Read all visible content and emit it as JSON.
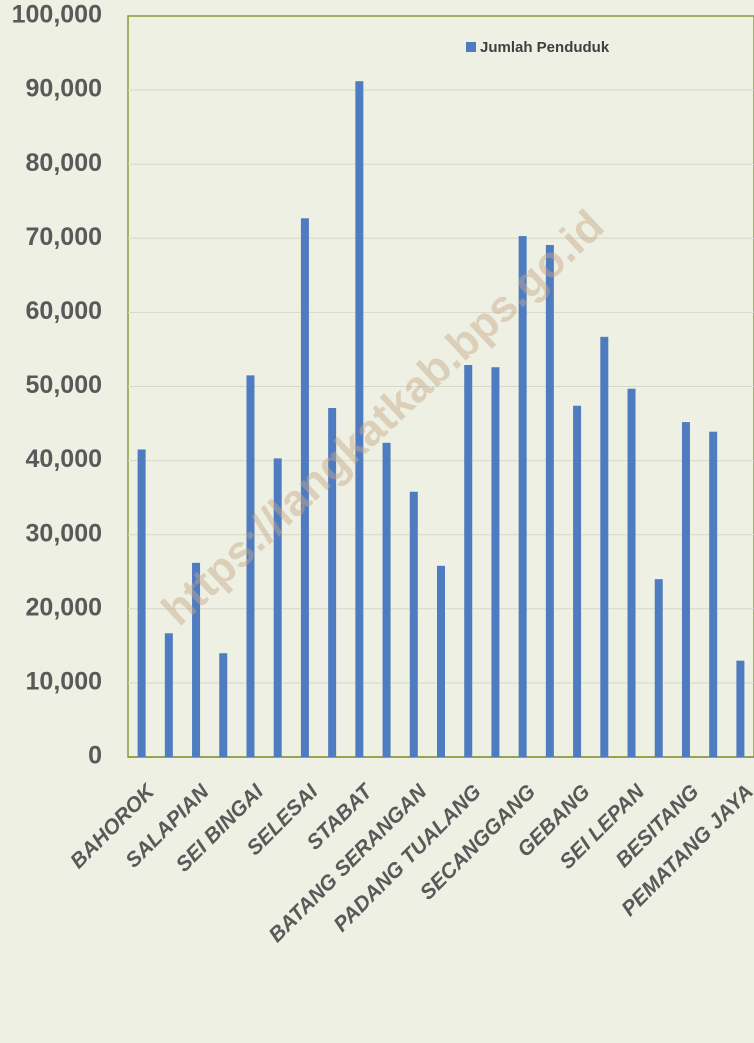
{
  "chart_data": {
    "type": "bar",
    "categories": [
      "BAHOROK",
      null,
      "SALAPIAN",
      null,
      "SEI BINGAI",
      null,
      "SELESAI",
      null,
      "STABAT",
      null,
      "BATANG SERANGAN",
      null,
      "PADANG TUALANG",
      null,
      "SECANGGANG",
      null,
      "GEBANG",
      null,
      "SEI LEPAN",
      null,
      "BESITANG",
      null,
      "PEMATANG JAYA"
    ],
    "series": [
      {
        "name": "Jumlah Penduduk",
        "color": "#4f7cc0",
        "values": [
          41500,
          16700,
          26200,
          14000,
          51500,
          40300,
          72700,
          47100,
          91200,
          42400,
          35800,
          25800,
          52900,
          52600,
          70300,
          69100,
          47400,
          56700,
          49700,
          24000,
          45200,
          43900,
          13000
        ]
      }
    ],
    "ylim": [
      0,
      100000
    ],
    "yticks": [
      0,
      {
        "value": 10000,
        "label": "10,000"
      },
      {
        "value": 20000,
        "label": "20,000"
      },
      {
        "value": 30000,
        "label": "30,000"
      },
      {
        "value": 40000,
        "label": "40,000"
      },
      {
        "value": 50000,
        "label": "50,000"
      },
      {
        "value": 60000,
        "label": "60,000"
      },
      {
        "value": 70000,
        "label": "70,000"
      },
      {
        "value": 80000,
        "label": "80,000"
      },
      {
        "value": 90000,
        "label": "90,000"
      },
      {
        "value": 100000,
        "label": "100,000"
      }
    ],
    "grid": true,
    "legend": "top",
    "watermark": "https://langkatkab.bps.go.id"
  }
}
